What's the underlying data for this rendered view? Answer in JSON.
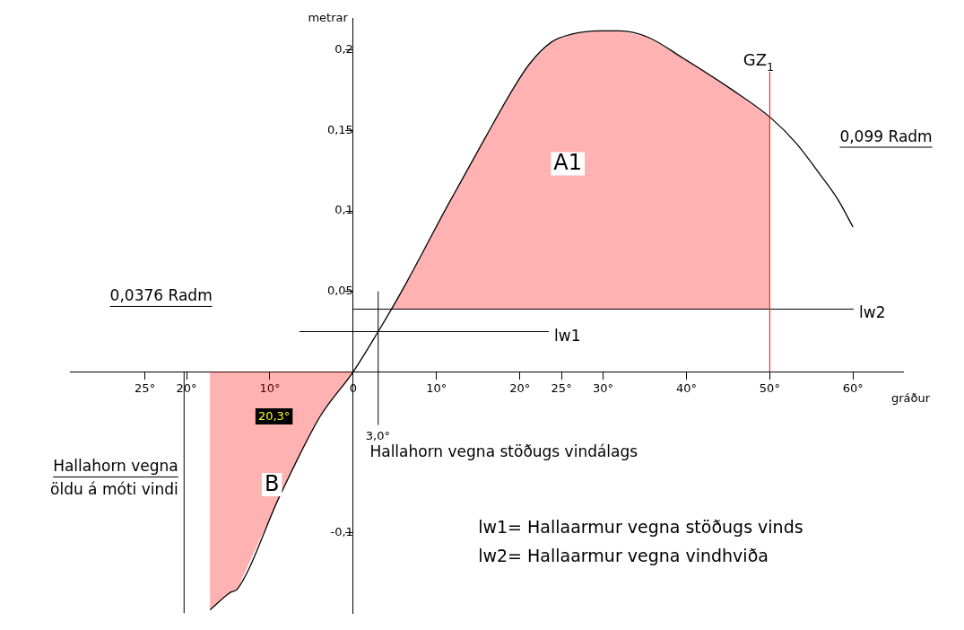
{
  "chart_data": {
    "type": "line",
    "xlabel": "gráður",
    "ylabel": "metrar",
    "xlim": [
      -34,
      66
    ],
    "ylim": [
      -0.15,
      0.22
    ],
    "xticks": [
      {
        "value": -25,
        "label": "25°"
      },
      {
        "value": -20,
        "label": "20°"
      },
      {
        "value": -10,
        "label": "10°"
      },
      {
        "value": 0,
        "label": "0"
      },
      {
        "value": 10,
        "label": "10°"
      },
      {
        "value": 20,
        "label": "20°"
      },
      {
        "value": 25,
        "label": "25°"
      },
      {
        "value": 30,
        "label": "30°"
      },
      {
        "value": 40,
        "label": "40°"
      },
      {
        "value": 50,
        "label": "50°"
      },
      {
        "value": 60,
        "label": "60°"
      }
    ],
    "yticks": [
      {
        "value": -0.1,
        "label": "-0,1"
      },
      {
        "value": 0.05,
        "label": "0,05"
      },
      {
        "value": 0.1,
        "label": "0,1"
      },
      {
        "value": 0.15,
        "label": "0,15"
      },
      {
        "value": 0.2,
        "label": "0,2"
      }
    ],
    "grid": false,
    "legend": false,
    "marker": "none",
    "line_style": "solid",
    "series": [
      {
        "name": "GZ$_{1}$",
        "type": "line",
        "color": "#000000",
        "x": [
          -17.2,
          -14.7,
          -13.9,
          -8.8,
          -4.0,
          0,
          3.0,
          4.6,
          6.5,
          11.4,
          15.9,
          19.2,
          21.1,
          23.8,
          26.3,
          29.6,
          32.0,
          35.4,
          39.6,
          45.3,
          50.1,
          53.2,
          56.0,
          58.2,
          60.0
        ],
        "values": [
          -0.148,
          -0.137,
          -0.135,
          -0.077,
          -0.028,
          0,
          0.025,
          0.039,
          0.0565,
          0.104,
          0.146,
          0.176,
          0.191,
          0.205,
          0.21,
          0.212,
          0.212,
          0.208,
          0.195,
          0.176,
          0.158,
          0.142,
          0.123,
          0.107,
          0.09
        ]
      },
      {
        "name": "A1",
        "type": "area",
        "color": "#ff0000",
        "x": [
          4.6,
          6.5,
          11.4,
          15.9,
          19.2,
          21.1,
          23.8,
          26.3,
          29.6,
          32.0,
          35.4,
          39.6,
          45.3,
          50.0
        ],
        "values": [
          0.039,
          0.0565,
          0.104,
          0.146,
          0.176,
          0.191,
          0.205,
          0.21,
          0.212,
          0.212,
          0.208,
          0.195,
          0.176,
          0.158
        ]
      },
      {
        "name": "B",
        "type": "area",
        "color": "#ff0000",
        "x": [
          -17.2,
          -14.7,
          -13.9,
          -8.8,
          -4.0,
          0
        ],
        "values": [
          -0.148,
          -0.137,
          -0.135,
          -0.077,
          -0.028,
          0
        ]
      }
    ],
    "ref_lines": [
      {
        "axis": "y",
        "value": 0.039,
        "label": "lw2",
        "color": "#000000"
      },
      {
        "axis": "y",
        "value": 0.025,
        "label": "lw1",
        "color": "#000000"
      },
      {
        "axis": "x",
        "value": 50,
        "color": "#ff0000"
      },
      {
        "axis": "x",
        "value": -20.3,
        "color": "#000000"
      },
      {
        "axis": "x",
        "value": 3.0,
        "label": "3,0°",
        "color": "#000000"
      }
    ],
    "annotations": [
      "0,099 Radm",
      "0,0376 Radm",
      "Hallahorn vegna stöðugs vindálags",
      "Hallahorn vegna\nöldu á móti vindi",
      "20,3°",
      "lw1= Hallaarmur vegna stöðugs vinds",
      "lw2= Hallaarmur vegna vindhviða"
    ]
  }
}
